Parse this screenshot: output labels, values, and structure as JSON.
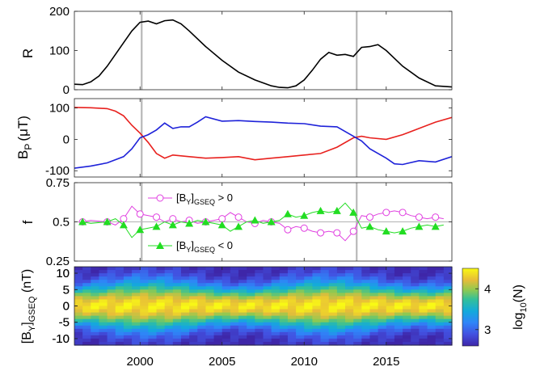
{
  "chart_data": [
    {
      "type": "line",
      "ylabel": "R",
      "xlim": [
        1996,
        2019
      ],
      "ylim": [
        0,
        200
      ],
      "yticks": [
        0,
        100,
        200
      ],
      "vlines": [
        2000.1,
        2013.2
      ],
      "series": [
        {
          "color": "#000000",
          "x": [
            1996,
            1996.5,
            1997,
            1997.5,
            1998,
            1998.5,
            1999,
            1999.5,
            2000,
            2000.5,
            2001,
            2001.5,
            2002,
            2002.5,
            2003,
            2004,
            2005,
            2006,
            2007,
            2008,
            2008.5,
            2009,
            2009.5,
            2010,
            2010.5,
            2011,
            2011.5,
            2012,
            2012.5,
            2013,
            2013.5,
            2014,
            2014.5,
            2015,
            2016,
            2017,
            2018,
            2019
          ],
          "y": [
            14,
            13,
            20,
            35,
            60,
            90,
            120,
            150,
            172,
            175,
            168,
            176,
            178,
            168,
            150,
            110,
            75,
            45,
            25,
            10,
            6,
            5,
            10,
            25,
            50,
            78,
            95,
            88,
            90,
            85,
            108,
            110,
            115,
            100,
            60,
            30,
            10,
            7
          ]
        }
      ]
    },
    {
      "type": "line",
      "ylabel": "B",
      "ylabel_sub": "P",
      "ylabel_unit": "(μT)",
      "xlim": [
        1996,
        2019
      ],
      "ylim": [
        -120,
        130
      ],
      "yticks": [
        -100,
        0,
        100
      ],
      "vlines": [
        2000.1,
        2013.2
      ],
      "series": [
        {
          "color": "#e8211e",
          "x": [
            1996,
            1997,
            1998,
            1998.5,
            1999,
            1999.5,
            2000,
            2000.5,
            2001,
            2001.5,
            2002,
            2003,
            2004,
            2005,
            2006,
            2007,
            2008,
            2009,
            2010,
            2011,
            2012,
            2013,
            2013.5,
            2014,
            2015,
            2016,
            2017,
            2018,
            2019
          ],
          "y": [
            102,
            101,
            98,
            90,
            75,
            45,
            20,
            -10,
            -45,
            -60,
            -50,
            -55,
            -60,
            -58,
            -55,
            -65,
            -60,
            -55,
            -50,
            -45,
            -25,
            5,
            10,
            5,
            0,
            15,
            35,
            55,
            70
          ]
        },
        {
          "color": "#1e22d9",
          "x": [
            1996,
            1997,
            1998,
            1999,
            1999.5,
            2000,
            2000.5,
            2001,
            2001.5,
            2002,
            2002.5,
            2003,
            2003.5,
            2004,
            2005,
            2006,
            2007,
            2008,
            2009,
            2010,
            2011,
            2012,
            2013,
            2013.5,
            2014,
            2015,
            2015.5,
            2016,
            2017,
            2018,
            2019
          ],
          "y": [
            -92,
            -85,
            -75,
            -55,
            -30,
            5,
            15,
            30,
            52,
            35,
            40,
            40,
            55,
            72,
            58,
            60,
            57,
            55,
            52,
            50,
            42,
            40,
            10,
            -5,
            -30,
            -60,
            -78,
            -80,
            -68,
            -72,
            -55
          ]
        }
      ]
    },
    {
      "type": "line",
      "ylabel": "f",
      "xlim": [
        1996,
        2019
      ],
      "ylim": [
        0.25,
        0.75
      ],
      "yticks": [
        0.25,
        0.5,
        0.75
      ],
      "hline": 0.5,
      "vlines": [
        2000.1,
        2013.2
      ],
      "series": [
        {
          "name": "> 0",
          "color": "#e040e0",
          "marker": "circle",
          "x": [
            1996.5,
            1997,
            1998,
            1998.5,
            1999,
            1999.5,
            2000,
            2000.5,
            2001,
            2001.5,
            2002,
            2002.5,
            2003,
            2003.5,
            2004,
            2004.5,
            2005,
            2005.5,
            2006,
            2006.5,
            2007,
            2007.5,
            2008,
            2008.5,
            2009,
            2009.5,
            2010,
            2010.5,
            2011,
            2011.5,
            2012,
            2012.5,
            2013,
            2013.5,
            2014,
            2014.5,
            2015,
            2015.5,
            2016,
            2016.5,
            2017,
            2017.5,
            2018,
            2018.5
          ],
          "y": [
            0.5,
            0.51,
            0.5,
            0.48,
            0.52,
            0.6,
            0.55,
            0.54,
            0.53,
            0.5,
            0.52,
            0.5,
            0.51,
            0.49,
            0.5,
            0.51,
            0.52,
            0.56,
            0.53,
            0.5,
            0.49,
            0.51,
            0.5,
            0.49,
            0.45,
            0.47,
            0.46,
            0.44,
            0.43,
            0.44,
            0.43,
            0.38,
            0.44,
            0.54,
            0.53,
            0.55,
            0.56,
            0.57,
            0.56,
            0.54,
            0.53,
            0.52,
            0.53,
            0.52
          ]
        },
        {
          "name": "< 0",
          "color": "#22dd22",
          "marker": "triangle",
          "x": [
            1996.5,
            1997,
            1998,
            1998.5,
            1999,
            1999.5,
            2000,
            2000.5,
            2001,
            2001.5,
            2002,
            2002.5,
            2003,
            2003.5,
            2004,
            2004.5,
            2005,
            2005.5,
            2006,
            2006.5,
            2007,
            2007.5,
            2008,
            2008.5,
            2009,
            2009.5,
            2010,
            2010.5,
            2011,
            2011.5,
            2012,
            2012.5,
            2013,
            2013.5,
            2014,
            2014.5,
            2015,
            2015.5,
            2016,
            2016.5,
            2017,
            2017.5,
            2018,
            2018.5
          ],
          "y": [
            0.5,
            0.49,
            0.5,
            0.52,
            0.48,
            0.4,
            0.45,
            0.46,
            0.47,
            0.5,
            0.48,
            0.5,
            0.49,
            0.51,
            0.5,
            0.49,
            0.48,
            0.44,
            0.47,
            0.5,
            0.51,
            0.49,
            0.5,
            0.51,
            0.55,
            0.53,
            0.54,
            0.56,
            0.57,
            0.56,
            0.57,
            0.62,
            0.56,
            0.46,
            0.47,
            0.45,
            0.44,
            0.43,
            0.44,
            0.46,
            0.47,
            0.48,
            0.47,
            0.48
          ]
        }
      ],
      "annotations": [
        {
          "text_main": "[B",
          "text_sub1": "Y",
          "text_mid": "]",
          "text_sub2": "GSEQ",
          "text_tail": " > 0"
        },
        {
          "text_main": "[B",
          "text_sub1": "Y",
          "text_mid": "]",
          "text_sub2": "GSEQ",
          "text_tail": " < 0"
        }
      ]
    },
    {
      "type": "heatmap",
      "ylabel": "[B",
      "ylabel_sub1": "Y",
      "ylabel_mid": "]",
      "ylabel_sub2": "GSEQ",
      "ylabel_unit": " (nT)",
      "xlim": [
        1996,
        2019
      ],
      "ylim": [
        -12,
        12
      ],
      "xticks": [
        2000,
        2005,
        2010,
        2015
      ],
      "yticks": [
        10,
        5,
        0,
        -5,
        -10
      ],
      "colorbar": {
        "label_main": "log",
        "label_sub": "10",
        "label_tail": "(N)",
        "range": [
          2.6,
          4.5
        ],
        "ticks": [
          3,
          4
        ]
      }
    }
  ]
}
